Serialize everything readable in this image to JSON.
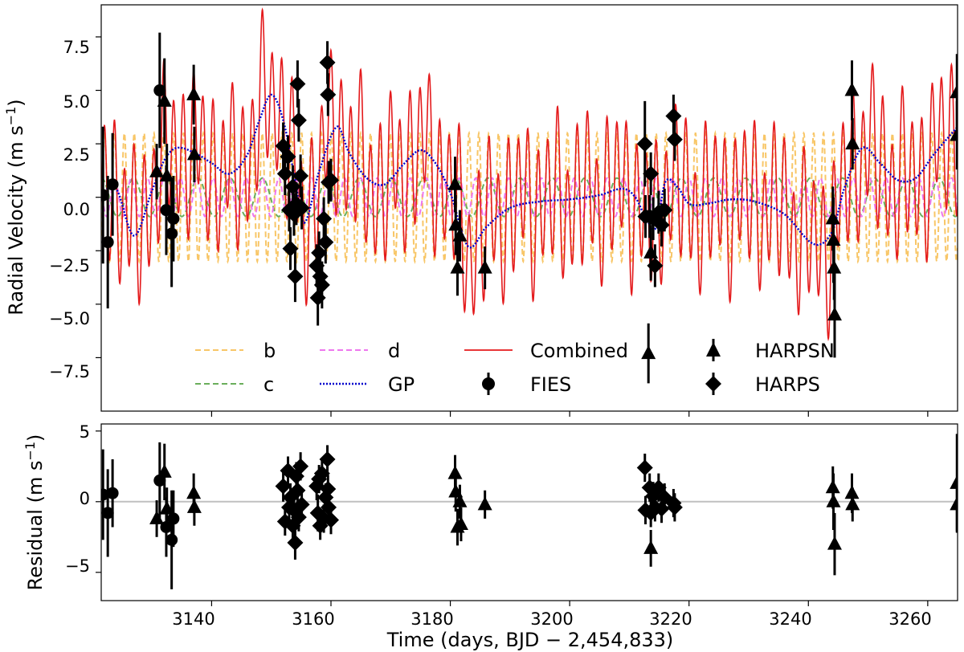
{
  "chart_data": {
    "type": "line",
    "x_range": [
      3121.5,
      3265
    ],
    "x_ticks": [
      "3140",
      "3160",
      "3180",
      "3200",
      "3220",
      "3240",
      "3260"
    ],
    "xlabel": "Time (days, BJD − 2,454,833)",
    "top": {
      "ylabel_main": "Radial Velocity (m s",
      "ylabel_exp": "−1",
      "ylabel_close": ")",
      "ylim": [
        -10,
        9
      ],
      "y_ticks": [
        "−7.5",
        "−5.0",
        "−2.5",
        "0.0",
        "2.5",
        "5.0",
        "7.5"
      ],
      "y_tick_values": [
        -7.5,
        -5,
        -2.5,
        0,
        2.5,
        5,
        7.5
      ],
      "series": {
        "b": {
          "name": "b",
          "amplitude": 3.0,
          "period": 1.65,
          "color": "#f8c667"
        },
        "c": {
          "name": "c",
          "amplitude": 0.9,
          "period": 5.4,
          "color": "#6aae5b"
        },
        "d": {
          "name": "d",
          "amplitude": 0.9,
          "period": 2.75,
          "color": "#ee77ee"
        },
        "gp": {
          "name": "GP",
          "color": "#0000cc",
          "knots": [
            [
              3121.5,
              0.2
            ],
            [
              3124,
              0.4
            ],
            [
              3127,
              -1.8
            ],
            [
              3130,
              0.3
            ],
            [
              3132,
              1.7
            ],
            [
              3134,
              2.3
            ],
            [
              3137,
              2.1
            ],
            [
              3140,
              1.6
            ],
            [
              3143,
              1.1
            ],
            [
              3146,
              2.0
            ],
            [
              3148,
              3.6
            ],
            [
              3150,
              4.8
            ],
            [
              3152,
              3.6
            ],
            [
              3154,
              0.8
            ],
            [
              3155.5,
              -1.2
            ],
            [
              3158,
              1.2
            ],
            [
              3161,
              3.3
            ],
            [
              3163,
              2.1
            ],
            [
              3166,
              0.9
            ],
            [
              3169,
              0.6
            ],
            [
              3172,
              1.5
            ],
            [
              3175,
              2.2
            ],
            [
              3177.5,
              1.6
            ],
            [
              3180,
              0.2
            ],
            [
              3183,
              -2.3
            ],
            [
              3186,
              -1.4
            ],
            [
              3190,
              -0.5
            ],
            [
              3195,
              -0.2
            ],
            [
              3200,
              -0.1
            ],
            [
              3205,
              0.1
            ],
            [
              3209,
              0.4
            ],
            [
              3211,
              0.0
            ],
            [
              3213,
              -1.1
            ],
            [
              3214.5,
              -1.4
            ],
            [
              3216,
              0.7
            ],
            [
              3218,
              0.5
            ],
            [
              3220,
              -0.3
            ],
            [
              3223,
              -0.3
            ],
            [
              3227,
              -0.1
            ],
            [
              3231,
              -0.2
            ],
            [
              3236,
              -0.8
            ],
            [
              3241,
              -2.2
            ],
            [
              3244,
              -1.6
            ],
            [
              3246,
              0.4
            ],
            [
              3249,
              2.3
            ],
            [
              3252,
              1.6
            ],
            [
              3255,
              0.8
            ],
            [
              3258,
              0.9
            ],
            [
              3261,
              2.0
            ],
            [
              3265,
              3.3
            ]
          ]
        },
        "combined": {
          "name": "Combined",
          "color": "#e41a1c"
        }
      },
      "points": {
        "FIES": {
          "name": "FIES",
          "marker": "circle",
          "data": [
            [
              3121.8,
              0.1,
              3.2
            ],
            [
              3122.6,
              -2.1,
              3.1
            ],
            [
              3123.4,
              0.6,
              2.4
            ],
            [
              3131.3,
              5.0,
              2.7
            ],
            [
              3132.4,
              -0.6,
              2.1
            ],
            [
              3133.3,
              -1.7,
              2.5
            ],
            [
              3133.6,
              -1.0,
              2.0
            ]
          ]
        },
        "HARPSN": {
          "name": "HARPSN",
          "marker": "triangle",
          "data": [
            [
              3130.8,
              1.2,
              1.3
            ],
            [
              3132.1,
              4.5,
              2.0
            ],
            [
              3132.5,
              1.0,
              1.5
            ],
            [
              3137.0,
              4.8,
              1.4
            ],
            [
              3137.1,
              2.0,
              1.3
            ],
            [
              3180.8,
              0.6,
              1.3
            ],
            [
              3180.9,
              -1.3,
              1.4
            ],
            [
              3181.2,
              -3.3,
              1.3
            ],
            [
              3181.6,
              -1.8,
              1.2
            ],
            [
              3185.8,
              -3.3,
              1.0
            ],
            [
              3213.2,
              -7.3,
              1.4
            ],
            [
              3213.6,
              -2.6,
              1.3
            ],
            [
              3244.1,
              -1.0,
              1.5
            ],
            [
              3244.2,
              -2.0,
              2.0
            ],
            [
              3244.3,
              -3.3,
              1.5
            ],
            [
              3244.4,
              -5.5,
              2.0
            ],
            [
              3247.3,
              5.0,
              1.4
            ],
            [
              3247.4,
              2.5,
              1.2
            ],
            [
              3264.9,
              4.9,
              1.8
            ],
            [
              3264.9,
              2.9,
              1.6
            ]
          ]
        },
        "HARPS": {
          "name": "HARPS",
          "marker": "diamond",
          "data": [
            [
              3152.0,
              2.4,
              1.1
            ],
            [
              3152.3,
              1.1,
              1.0
            ],
            [
              3152.8,
              1.9,
              1.0
            ],
            [
              3153.0,
              -0.6,
              1.0
            ],
            [
              3153.2,
              -2.4,
              1.0
            ],
            [
              3153.6,
              0.5,
              1.0
            ],
            [
              3153.8,
              -0.8,
              1.0
            ],
            [
              3154.0,
              -3.7,
              1.2
            ],
            [
              3154.2,
              -0.3,
              1.0
            ],
            [
              3154.4,
              5.3,
              1.1
            ],
            [
              3154.6,
              3.6,
              1.0
            ],
            [
              3154.9,
              1.0,
              1.0
            ],
            [
              3155.1,
              -0.5,
              1.0
            ],
            [
              3157.6,
              -3.2,
              1.0
            ],
            [
              3157.8,
              -4.7,
              1.3
            ],
            [
              3158.0,
              -2.6,
              1.0
            ],
            [
              3158.2,
              -3.7,
              1.0
            ],
            [
              3158.5,
              -4.1,
              1.1
            ],
            [
              3158.8,
              -1.0,
              1.0
            ],
            [
              3159.1,
              -2.1,
              1.0
            ],
            [
              3159.4,
              6.3,
              1.0
            ],
            [
              3159.5,
              4.8,
              1.0
            ],
            [
              3159.6,
              0.7,
              1.0
            ],
            [
              3160.0,
              0.8,
              1.0
            ],
            [
              3212.6,
              2.5,
              2.0
            ],
            [
              3212.7,
              -0.9,
              1.0
            ],
            [
              3213.4,
              -0.9,
              1.0
            ],
            [
              3213.6,
              1.1,
              1.0
            ],
            [
              3214.0,
              -1.0,
              1.0
            ],
            [
              3214.3,
              -3.2,
              1.0
            ],
            [
              3214.9,
              -0.7,
              1.0
            ],
            [
              3215.4,
              -1.3,
              1.0
            ],
            [
              3215.9,
              -0.6,
              1.0
            ],
            [
              3217.4,
              3.8,
              1.0
            ],
            [
              3217.6,
              2.7,
              1.0
            ]
          ]
        }
      }
    },
    "bottom": {
      "ylabel_main": "Residual (m s",
      "ylabel_exp": "−1",
      "ylabel_close": ")",
      "ylim": [
        -7,
        5.5
      ],
      "y_ticks": [
        "−5",
        "0",
        "5"
      ],
      "y_tick_values": [
        -5,
        0,
        5
      ],
      "zero_line_color": "#c0c0c0",
      "points": {
        "FIES": [
          [
            3121.8,
            0.5,
            3.2
          ],
          [
            3122.6,
            -0.8,
            3.1
          ],
          [
            3123.4,
            0.6,
            2.4
          ],
          [
            3131.3,
            1.5,
            2.7
          ],
          [
            3132.4,
            -1.8,
            2.1
          ],
          [
            3133.3,
            -2.7,
            3.5
          ],
          [
            3133.6,
            -1.2,
            2.0
          ]
        ],
        "HARPSN": [
          [
            3130.8,
            -1.2,
            1.3
          ],
          [
            3132.1,
            2.1,
            2.0
          ],
          [
            3132.5,
            -0.5,
            1.5
          ],
          [
            3137.0,
            0.6,
            1.4
          ],
          [
            3137.1,
            -0.4,
            1.3
          ],
          [
            3180.8,
            2.0,
            1.3
          ],
          [
            3180.9,
            0.7,
            1.4
          ],
          [
            3181.2,
            -1.8,
            1.3
          ],
          [
            3181.6,
            0.0,
            1.2
          ],
          [
            3181.8,
            -1.6,
            1.2
          ],
          [
            3185.8,
            -0.2,
            1.0
          ],
          [
            3213.6,
            -3.3,
            1.3
          ],
          [
            3244.1,
            1.0,
            1.5
          ],
          [
            3244.2,
            0.0,
            2.0
          ],
          [
            3244.4,
            -3.0,
            2.2
          ],
          [
            3247.3,
            0.6,
            1.4
          ],
          [
            3247.4,
            -0.2,
            1.2
          ],
          [
            3264.9,
            1.3,
            3.5
          ],
          [
            3264.9,
            -0.2,
            1.9
          ]
        ],
        "HARPS": [
          [
            3152.0,
            1.1,
            1.1
          ],
          [
            3152.3,
            -1.4,
            1.0
          ],
          [
            3152.8,
            2.2,
            1.0
          ],
          [
            3153.0,
            -0.4,
            1.0
          ],
          [
            3153.2,
            0.3,
            1.0
          ],
          [
            3153.6,
            -1.7,
            1.0
          ],
          [
            3153.8,
            -0.6,
            1.0
          ],
          [
            3154.0,
            -2.9,
            1.2
          ],
          [
            3154.2,
            1.8,
            1.0
          ],
          [
            3154.4,
            0.8,
            1.1
          ],
          [
            3154.6,
            -1.1,
            1.0
          ],
          [
            3154.9,
            2.5,
            1.0
          ],
          [
            3155.1,
            -0.2,
            1.0
          ],
          [
            3157.6,
            1.1,
            1.0
          ],
          [
            3157.8,
            -0.8,
            1.3
          ],
          [
            3158.0,
            1.6,
            1.0
          ],
          [
            3158.2,
            -1.7,
            1.0
          ],
          [
            3158.5,
            2.0,
            1.1
          ],
          [
            3158.8,
            -1.2,
            1.0
          ],
          [
            3159.1,
            0.3,
            1.0
          ],
          [
            3159.4,
            3.0,
            1.0
          ],
          [
            3159.5,
            0.9,
            1.0
          ],
          [
            3159.6,
            -0.4,
            1.0
          ],
          [
            3160.0,
            -1.3,
            1.0
          ],
          [
            3212.6,
            2.4,
            1.0
          ],
          [
            3212.7,
            -0.6,
            1.0
          ],
          [
            3213.4,
            1.0,
            1.0
          ],
          [
            3213.6,
            -0.8,
            1.0
          ],
          [
            3214.0,
            0.4,
            1.0
          ],
          [
            3214.3,
            -0.4,
            1.0
          ],
          [
            3214.9,
            1.0,
            1.0
          ],
          [
            3215.4,
            -0.5,
            1.0
          ],
          [
            3215.9,
            0.3,
            1.0
          ],
          [
            3217.4,
            -0.1,
            1.0
          ],
          [
            3217.6,
            -0.4,
            1.0
          ]
        ]
      }
    },
    "legend": {
      "placement": "lower-center",
      "entries": [
        "b",
        "c",
        "d",
        "GP",
        "Combined",
        "FIES",
        "HARPSN",
        "HARPS"
      ]
    }
  }
}
